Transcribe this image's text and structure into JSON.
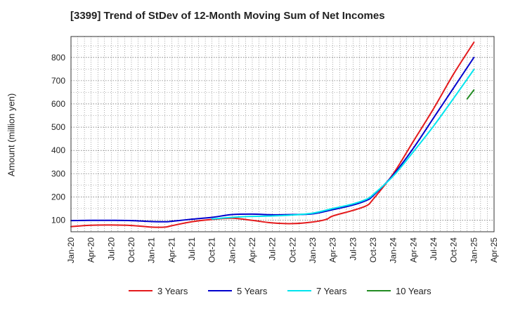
{
  "chart_data": {
    "type": "line",
    "title": "[3399]  Trend of StDev of 12-Month Moving Sum of Net Incomes",
    "xlabel": "",
    "ylabel": "Amount (million yen)",
    "xlim": [
      "2020-01",
      "2025-04"
    ],
    "ylim": [
      50,
      890
    ],
    "yticks": [
      100,
      200,
      300,
      400,
      500,
      600,
      700,
      800
    ],
    "xticks": [
      "Jan-20",
      "Apr-20",
      "Jul-20",
      "Oct-20",
      "Jan-21",
      "Apr-21",
      "Jul-21",
      "Oct-21",
      "Jan-22",
      "Apr-22",
      "Jul-22",
      "Oct-22",
      "Jan-23",
      "Apr-23",
      "Jul-23",
      "Oct-23",
      "Jan-24",
      "Apr-24",
      "Jul-24",
      "Oct-24",
      "Jan-25",
      "Apr-25"
    ],
    "grid": true,
    "legend_position": "bottom",
    "series": [
      {
        "name": "3 Years",
        "color": "#e41a1c",
        "points": [
          [
            "2020-01",
            72
          ],
          [
            "2020-04",
            78
          ],
          [
            "2020-07",
            79
          ],
          [
            "2020-10",
            77
          ],
          [
            "2021-01",
            70
          ],
          [
            "2021-03",
            70
          ],
          [
            "2021-04",
            76
          ],
          [
            "2021-07",
            93
          ],
          [
            "2021-10",
            103
          ],
          [
            "2022-01",
            108
          ],
          [
            "2022-04",
            99
          ],
          [
            "2022-07",
            88
          ],
          [
            "2022-10",
            85
          ],
          [
            "2023-01",
            92
          ],
          [
            "2023-03",
            103
          ],
          [
            "2023-04",
            118
          ],
          [
            "2023-07",
            142
          ],
          [
            "2023-09",
            162
          ],
          [
            "2023-10",
            190
          ],
          [
            "2024-01",
            300
          ],
          [
            "2024-04",
            440
          ],
          [
            "2024-07",
            580
          ],
          [
            "2024-10",
            730
          ],
          [
            "2025-01",
            865
          ]
        ]
      },
      {
        "name": "5 Years",
        "color": "#0000cd",
        "points": [
          [
            "2020-01",
            98
          ],
          [
            "2020-04",
            99
          ],
          [
            "2020-07",
            99
          ],
          [
            "2020-10",
            98
          ],
          [
            "2021-01",
            94
          ],
          [
            "2021-03",
            93
          ],
          [
            "2021-04",
            95
          ],
          [
            "2021-07",
            104
          ],
          [
            "2021-10",
            112
          ],
          [
            "2022-01",
            124
          ],
          [
            "2022-04",
            126
          ],
          [
            "2022-07",
            123
          ],
          [
            "2022-10",
            124
          ],
          [
            "2023-01",
            127
          ],
          [
            "2023-04",
            145
          ],
          [
            "2023-07",
            165
          ],
          [
            "2023-09",
            185
          ],
          [
            "2023-10",
            205
          ],
          [
            "2024-01",
            295
          ],
          [
            "2024-04",
            410
          ],
          [
            "2024-07",
            540
          ],
          [
            "2024-10",
            670
          ],
          [
            "2025-01",
            800
          ]
        ]
      },
      {
        "name": "7 Years",
        "color": "#00e5ee",
        "points": [
          [
            "2021-10",
            105
          ],
          [
            "2022-01",
            112
          ],
          [
            "2022-04",
            116
          ],
          [
            "2022-07",
            118
          ],
          [
            "2022-10",
            122
          ],
          [
            "2023-01",
            130
          ],
          [
            "2023-04",
            150
          ],
          [
            "2023-07",
            170
          ],
          [
            "2023-09",
            190
          ],
          [
            "2023-10",
            210
          ],
          [
            "2024-01",
            290
          ],
          [
            "2024-04",
            395
          ],
          [
            "2024-07",
            505
          ],
          [
            "2024-10",
            625
          ],
          [
            "2025-01",
            748
          ]
        ]
      },
      {
        "name": "10 Years",
        "color": "#228b22",
        "points": [
          [
            "2024-12",
            622
          ],
          [
            "2025-01",
            660
          ]
        ]
      }
    ]
  }
}
